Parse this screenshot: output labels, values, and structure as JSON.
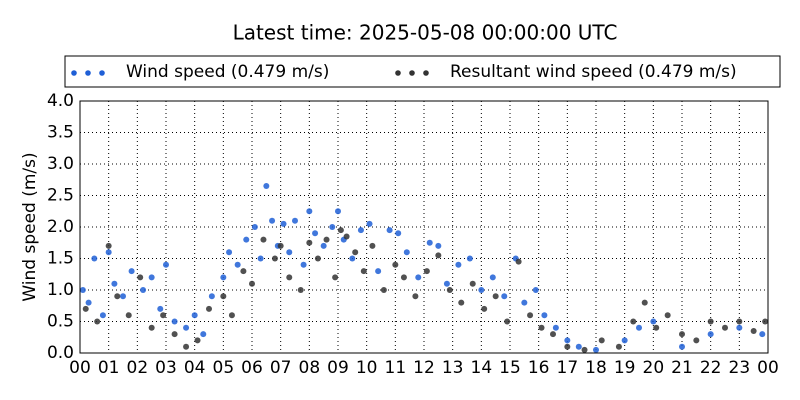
{
  "chart_data": {
    "type": "scatter",
    "title": "Latest time: 2025-05-08 00:00:00 UTC",
    "y_label": "Wind speed (m/s)",
    "xlim": [
      0,
      24
    ],
    "xticks": [
      {
        "value": 0,
        "label": "00"
      },
      {
        "value": 1,
        "label": "01"
      },
      {
        "value": 2,
        "label": "02"
      },
      {
        "value": 3,
        "label": "03"
      },
      {
        "value": 4,
        "label": "04"
      },
      {
        "value": 5,
        "label": "05"
      },
      {
        "value": 6,
        "label": "06"
      },
      {
        "value": 7,
        "label": "07"
      },
      {
        "value": 8,
        "label": "08"
      },
      {
        "value": 9,
        "label": "09"
      },
      {
        "value": 10,
        "label": "10"
      },
      {
        "value": 11,
        "label": "11"
      },
      {
        "value": 12,
        "label": "12"
      },
      {
        "value": 13,
        "label": "13"
      },
      {
        "value": 14,
        "label": "14"
      },
      {
        "value": 15,
        "label": "15"
      },
      {
        "value": 16,
        "label": "16"
      },
      {
        "value": 17,
        "label": "17"
      },
      {
        "value": 18,
        "label": "18"
      },
      {
        "value": 19,
        "label": "19"
      },
      {
        "value": 20,
        "label": "20"
      },
      {
        "value": 21,
        "label": "21"
      },
      {
        "value": 22,
        "label": "22"
      },
      {
        "value": 23,
        "label": "23"
      },
      {
        "value": 24,
        "label": "00"
      }
    ],
    "ylim": [
      0,
      4
    ],
    "yticks": [
      {
        "value": 0,
        "label": "0.0"
      },
      {
        "value": 0.5,
        "label": "0.5"
      },
      {
        "value": 1,
        "label": "1.0"
      },
      {
        "value": 1.5,
        "label": "1.5"
      },
      {
        "value": 2,
        "label": "2.0"
      },
      {
        "value": 2.5,
        "label": "2.5"
      },
      {
        "value": 3,
        "label": "3.0"
      },
      {
        "value": 3.5,
        "label": "3.5"
      },
      {
        "value": 4,
        "label": "4.0"
      }
    ],
    "grid": true,
    "legend": "top",
    "series": [
      {
        "name": "Wind speed (0.479 m/s)",
        "color": "#1f5fd6",
        "x": [
          0.1,
          0.3,
          0.5,
          0.8,
          1.0,
          1.2,
          1.5,
          1.8,
          2.2,
          2.5,
          2.8,
          3.0,
          3.3,
          3.7,
          4.0,
          4.3,
          4.6,
          5.0,
          5.2,
          5.5,
          5.8,
          6.1,
          6.3,
          6.5,
          6.7,
          6.9,
          7.1,
          7.3,
          7.5,
          7.8,
          8.0,
          8.2,
          8.5,
          8.8,
          9.0,
          9.2,
          9.5,
          9.8,
          10.1,
          10.4,
          10.8,
          11.1,
          11.4,
          11.8,
          12.2,
          12.5,
          12.8,
          13.2,
          13.6,
          14.0,
          14.4,
          14.8,
          15.2,
          15.5,
          15.9,
          16.2,
          16.6,
          17.0,
          17.4,
          18.0,
          19.0,
          19.5,
          20.0,
          21.0,
          22.0,
          23.0,
          23.8
        ],
        "values": [
          1.0,
          0.8,
          1.5,
          0.6,
          1.6,
          1.1,
          0.9,
          1.3,
          1.0,
          1.2,
          0.7,
          1.4,
          0.5,
          0.4,
          0.6,
          0.3,
          0.9,
          1.2,
          1.6,
          1.4,
          1.8,
          2.0,
          1.5,
          2.65,
          2.1,
          1.7,
          2.05,
          1.6,
          2.1,
          1.4,
          2.25,
          1.9,
          1.7,
          2.0,
          2.25,
          1.8,
          1.5,
          1.95,
          2.05,
          1.3,
          1.95,
          1.9,
          1.6,
          1.2,
          1.75,
          1.7,
          1.1,
          1.4,
          1.5,
          1.0,
          1.2,
          0.9,
          1.5,
          0.8,
          1.0,
          0.6,
          0.4,
          0.2,
          0.1,
          0.05,
          0.2,
          0.4,
          0.5,
          0.1,
          0.3,
          0.4,
          0.3
        ]
      },
      {
        "name": "Resultant wind speed (0.479 m/s)",
        "color": "#333333",
        "x": [
          0.2,
          0.6,
          1.0,
          1.3,
          1.7,
          2.1,
          2.5,
          2.9,
          3.3,
          3.7,
          4.1,
          4.5,
          5.0,
          5.3,
          5.7,
          6.0,
          6.4,
          6.8,
          7.0,
          7.3,
          7.7,
          8.0,
          8.3,
          8.6,
          8.9,
          9.1,
          9.3,
          9.6,
          9.9,
          10.2,
          10.6,
          11.0,
          11.3,
          11.7,
          12.1,
          12.5,
          12.9,
          13.3,
          13.7,
          14.1,
          14.5,
          14.9,
          15.3,
          15.7,
          16.1,
          16.5,
          17.0,
          17.6,
          18.2,
          18.8,
          19.3,
          19.7,
          20.1,
          20.5,
          21.0,
          21.5,
          22.0,
          22.5,
          23.0,
          23.5,
          23.9
        ],
        "values": [
          0.7,
          0.5,
          1.7,
          0.9,
          0.6,
          1.2,
          0.4,
          0.6,
          0.3,
          0.1,
          0.2,
          0.7,
          0.9,
          0.6,
          1.3,
          1.1,
          1.8,
          1.5,
          1.7,
          1.2,
          1.0,
          1.75,
          1.5,
          1.8,
          1.2,
          1.95,
          1.85,
          1.6,
          1.3,
          1.7,
          1.0,
          1.4,
          1.2,
          0.9,
          1.3,
          1.55,
          1.0,
          0.8,
          1.1,
          0.7,
          0.9,
          0.5,
          1.45,
          0.6,
          0.4,
          0.3,
          0.1,
          0.05,
          0.2,
          0.1,
          0.5,
          0.8,
          0.4,
          0.6,
          0.3,
          0.2,
          0.5,
          0.4,
          0.5,
          0.35,
          0.5
        ]
      }
    ]
  }
}
